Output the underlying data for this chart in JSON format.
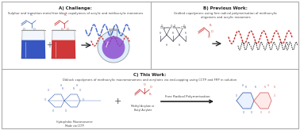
{
  "background_color": "#ffffff",
  "panel_A": {
    "title": "A) Challenge:",
    "subtitle": "Sulphur and transition metal free block copolymers of acrylic and methacrylic monomers"
  },
  "panel_B": {
    "title": "B) Previous Work:",
    "subtitle": "Grafted copolymers using free radical polymerisation of methacrylic\noligomers and acrylic monomers"
  },
  "panel_C": {
    "title": "C) This Work:",
    "subtitle": "Diblock copolymers of methacrylic macromonomers and acrylates via end-capping using CCTP and FRP in solution"
  },
  "colors": {
    "blue_liq": "#2244bb",
    "red_liq": "#cc2222",
    "flask_purple": "#7733bb",
    "flask_body": "#dde8f0",
    "flask_liq": "#8844cc",
    "beaker_glass": "#ddeef8",
    "beaker_edge": "#999999",
    "wave_blue": "#4466cc",
    "wave_red": "#cc3333",
    "wave_black": "#333333",
    "chem_blue": "#5577bb",
    "chem_red": "#cc4444",
    "chem_pink": "#dd7777",
    "chem_gray": "#555566",
    "arrow": "#222222",
    "text_dark": "#222222",
    "text_mid": "#444444",
    "border": "#aaaaaa"
  }
}
